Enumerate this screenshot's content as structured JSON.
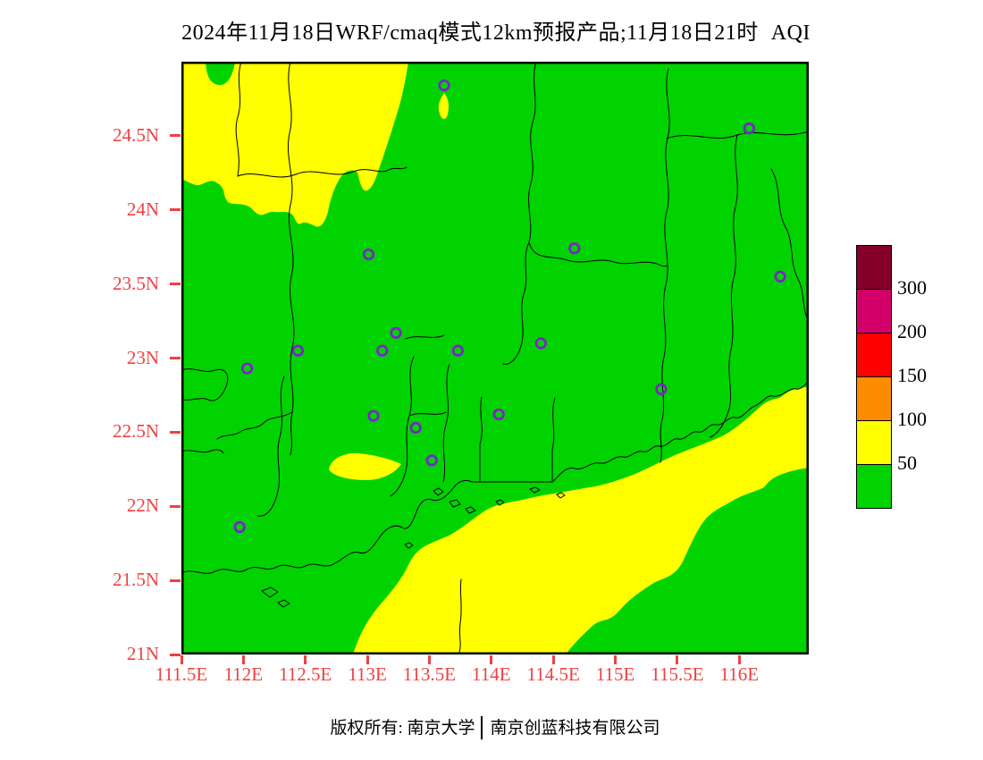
{
  "title": {
    "prefix": "2024年11月18日WRF/cmaq模式12km预报产品;11月18日21时",
    "highlight": "AQI"
  },
  "map": {
    "lon_min": 111.5,
    "lon_max": 116.56,
    "lat_min": 21.0,
    "lat_max": 25.0,
    "x_ticks": [
      {
        "label": "111.5E",
        "lon": 111.5
      },
      {
        "label": "112E",
        "lon": 112.0
      },
      {
        "label": "112.5E",
        "lon": 112.5
      },
      {
        "label": "113E",
        "lon": 113.0
      },
      {
        "label": "113.5E",
        "lon": 113.5
      },
      {
        "label": "114E",
        "lon": 114.0
      },
      {
        "label": "114.5E",
        "lon": 114.5
      },
      {
        "label": "115E",
        "lon": 115.0
      },
      {
        "label": "115.5E",
        "lon": 115.5
      },
      {
        "label": "116E",
        "lon": 116.0
      }
    ],
    "y_ticks": [
      {
        "label": "24.5N",
        "lat": 24.5
      },
      {
        "label": "24N",
        "lat": 24.0
      },
      {
        "label": "23.5N",
        "lat": 23.5
      },
      {
        "label": "23N",
        "lat": 23.0
      },
      {
        "label": "22.5N",
        "lat": 22.5
      },
      {
        "label": "22N",
        "lat": 22.0
      },
      {
        "label": "21.5N",
        "lat": 21.5
      },
      {
        "label": "21N",
        "lat": 21.0
      }
    ],
    "stations": [
      {
        "lon": 113.62,
        "lat": 24.84
      },
      {
        "lon": 116.08,
        "lat": 24.55
      },
      {
        "lon": 114.67,
        "lat": 23.74
      },
      {
        "lon": 113.01,
        "lat": 23.7
      },
      {
        "lon": 116.33,
        "lat": 23.55
      },
      {
        "lon": 113.23,
        "lat": 23.17
      },
      {
        "lon": 114.4,
        "lat": 23.1
      },
      {
        "lon": 112.44,
        "lat": 23.05
      },
      {
        "lon": 113.12,
        "lat": 23.05
      },
      {
        "lon": 113.73,
        "lat": 23.05
      },
      {
        "lon": 112.03,
        "lat": 22.93
      },
      {
        "lon": 115.37,
        "lat": 22.79
      },
      {
        "lon": 114.06,
        "lat": 22.62
      },
      {
        "lon": 113.05,
        "lat": 22.61
      },
      {
        "lon": 113.39,
        "lat": 22.53
      },
      {
        "lon": 113.52,
        "lat": 22.31
      },
      {
        "lon": 111.97,
        "lat": 21.86
      }
    ]
  },
  "legend": {
    "boundary_labels": [
      "300",
      "200",
      "150",
      "100",
      "50"
    ],
    "segment_colors_top_to_bottom": [
      "#850029",
      "#D4006A",
      "#FF0000",
      "#FF8C00",
      "#FFFF00",
      "#00D300"
    ]
  },
  "colors": {
    "green": "#00D300",
    "yellow": "#FFFF00",
    "axis_red": "#EF4141",
    "marker_purple": "#7D22CC"
  },
  "footer": {
    "owner": "版权所有: 南京大学",
    "company": "南京创蓝科技有限公司"
  }
}
